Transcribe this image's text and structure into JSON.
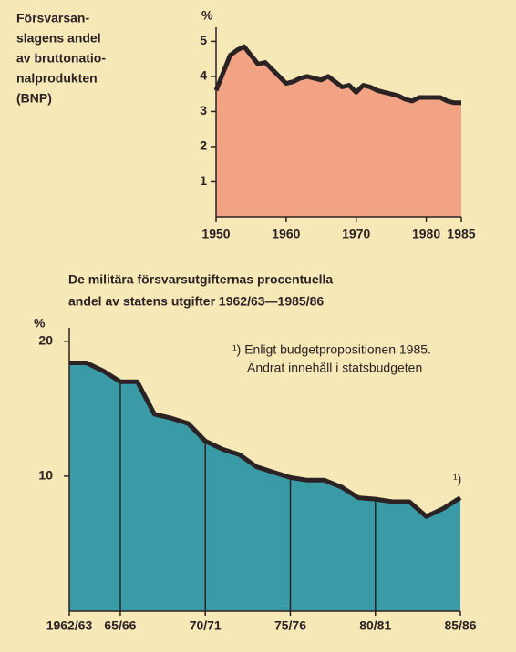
{
  "chart_data": [
    {
      "type": "area",
      "title_lines": [
        "Försvarsan-",
        "slagens andel",
        "av bruttonatio-",
        "nalprodukten",
        "(BNP)"
      ],
      "y_label": "%",
      "x": [
        1950,
        1951,
        1952,
        1953,
        1954,
        1955,
        1956,
        1957,
        1958,
        1959,
        1960,
        1961,
        1962,
        1963,
        1964,
        1965,
        1966,
        1967,
        1968,
        1969,
        1970,
        1971,
        1972,
        1973,
        1974,
        1975,
        1976,
        1977,
        1978,
        1979,
        1980,
        1981,
        1982,
        1983,
        1984,
        1985
      ],
      "values": [
        3.6,
        4.1,
        4.6,
        4.75,
        4.85,
        4.6,
        4.35,
        4.4,
        4.2,
        4.0,
        3.8,
        3.85,
        3.95,
        4.0,
        3.95,
        3.9,
        4.0,
        3.85,
        3.7,
        3.75,
        3.55,
        3.75,
        3.7,
        3.6,
        3.55,
        3.5,
        3.45,
        3.35,
        3.3,
        3.4,
        3.4,
        3.4,
        3.4,
        3.3,
        3.25,
        3.25
      ],
      "xlim": [
        1950,
        1985
      ],
      "xticks": [
        1950,
        1960,
        1970,
        1980,
        1985
      ],
      "ylim": [
        0,
        5.4
      ],
      "yticks": [
        1,
        2,
        3,
        4,
        5
      ],
      "color": "#f2a383",
      "line_color": "#2b2223"
    },
    {
      "type": "area",
      "title_lines": [
        "De militära försvarsutgifternas procentuella",
        "andel av statens utgifter 1962/63—1985/86"
      ],
      "y_label": "%",
      "categories": [
        "1962/63",
        null,
        null,
        "65/66",
        null,
        null,
        null,
        null,
        "70/71",
        null,
        null,
        null,
        null,
        "75/76",
        null,
        null,
        null,
        null,
        "80/81",
        null,
        null,
        null,
        null,
        "85/86"
      ],
      "values": [
        18.4,
        18.4,
        17.8,
        17.0,
        17.0,
        14.6,
        14.3,
        13.9,
        12.6,
        12.0,
        11.6,
        10.7,
        10.3,
        9.9,
        9.7,
        9.7,
        9.2,
        8.4,
        8.3,
        8.1,
        8.1,
        7.0,
        7.6,
        8.4
      ],
      "ylim": [
        0,
        21
      ],
      "yticks": [
        10,
        20
      ],
      "annotation": "¹)",
      "footnote": [
        "¹) Enligt budgetpropositionen 1985.",
        "Ändrat innehåll i statsbudgeten"
      ],
      "color": "#3a9ba6",
      "line_color": "#2b2223"
    }
  ]
}
